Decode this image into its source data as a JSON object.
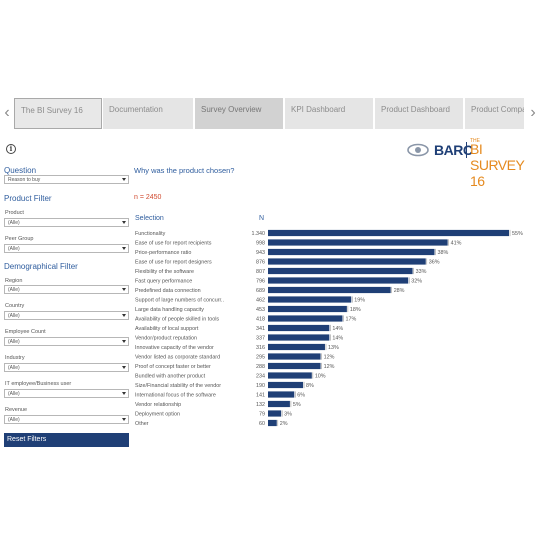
{
  "tabs": [
    {
      "label": "The BI Survey 16",
      "state": "first"
    },
    {
      "label": "Documentation",
      "state": "normal"
    },
    {
      "label": "Survey Overview",
      "state": "active"
    },
    {
      "label": "KPI Dashboard",
      "state": "normal"
    },
    {
      "label": "Product Dashboard",
      "state": "normal"
    },
    {
      "label": "Product Compar",
      "state": "normal"
    }
  ],
  "nav": {
    "left_arrow": "‹",
    "right_arrow": "›"
  },
  "info_icon": {
    "glyph": "i"
  },
  "logo": {
    "brand": "BARC",
    "small": "THE",
    "product": "BI SURVEY 16",
    "brand_color": "#1f3f76",
    "accent_color": "#e58a1f"
  },
  "question": {
    "label": "Question",
    "value": "Reason to buy"
  },
  "product_filter": {
    "heading": "Product Filter",
    "fields": [
      {
        "label": "Product",
        "value": "(Alle)"
      },
      {
        "label": "Peer Group",
        "value": "(Alle)"
      }
    ]
  },
  "demographic_filter": {
    "heading": "Demographical Filter",
    "fields": [
      {
        "label": "Region",
        "value": "(Alle)"
      },
      {
        "label": "Country",
        "value": "(Alle)"
      },
      {
        "label": "Employee Count",
        "value": "(Alle)"
      },
      {
        "label": "Industry",
        "value": "(Alle)"
      },
      {
        "label": "IT employee/Business user",
        "value": "(Alle)"
      },
      {
        "label": "Revenue",
        "value": "(Alle)"
      }
    ]
  },
  "reset_button": {
    "label": "Reset Filters"
  },
  "chart_data": {
    "type": "bar",
    "orientation": "horizontal",
    "title": "Why was the product chosen?",
    "total_label": "n = 2450",
    "category_header": "Selection",
    "count_header": "N",
    "bar_color": "#1f3f76",
    "categories": [
      "Functionality",
      "Ease of use for report recipients",
      "Price-performance ratio",
      "Ease of use for report designers",
      "Flexibility of the software",
      "Fast query performance",
      "Predefined data connection",
      "Support of large numbers of concurr..",
      "Large data handling capacity",
      "Availability of people skilled in tools",
      "Availability of local support",
      "Vendor/product reputation",
      "Innovative capacity of the vendor",
      "Vendor listed as corporate standard",
      "Proof of concept faster or better",
      "Bundled with another product",
      "Size/Financial stability of the vendor",
      "International focus of the software",
      "Vendor relationship",
      "Deployment option",
      "Other"
    ],
    "counts": [
      "1.340",
      "998",
      "943",
      "876",
      "807",
      "796",
      "689",
      "462",
      "453",
      "418",
      "341",
      "337",
      "316",
      "295",
      "288",
      "234",
      "190",
      "141",
      "132",
      "79",
      "60"
    ],
    "values": [
      55,
      41,
      38,
      36,
      33,
      32,
      28,
      19,
      18,
      17,
      14,
      14,
      13,
      12,
      12,
      10,
      8,
      6,
      5,
      3,
      2
    ],
    "value_labels": [
      "55%",
      "41%",
      "38%",
      "36%",
      "33%",
      "32%",
      "28%",
      "19%",
      "18%",
      "17%",
      "14%",
      "14%",
      "13%",
      "12%",
      "12%",
      "10%",
      "8%",
      "6%",
      "5%",
      "3%",
      "2%"
    ],
    "xlim": [
      0,
      55
    ]
  }
}
